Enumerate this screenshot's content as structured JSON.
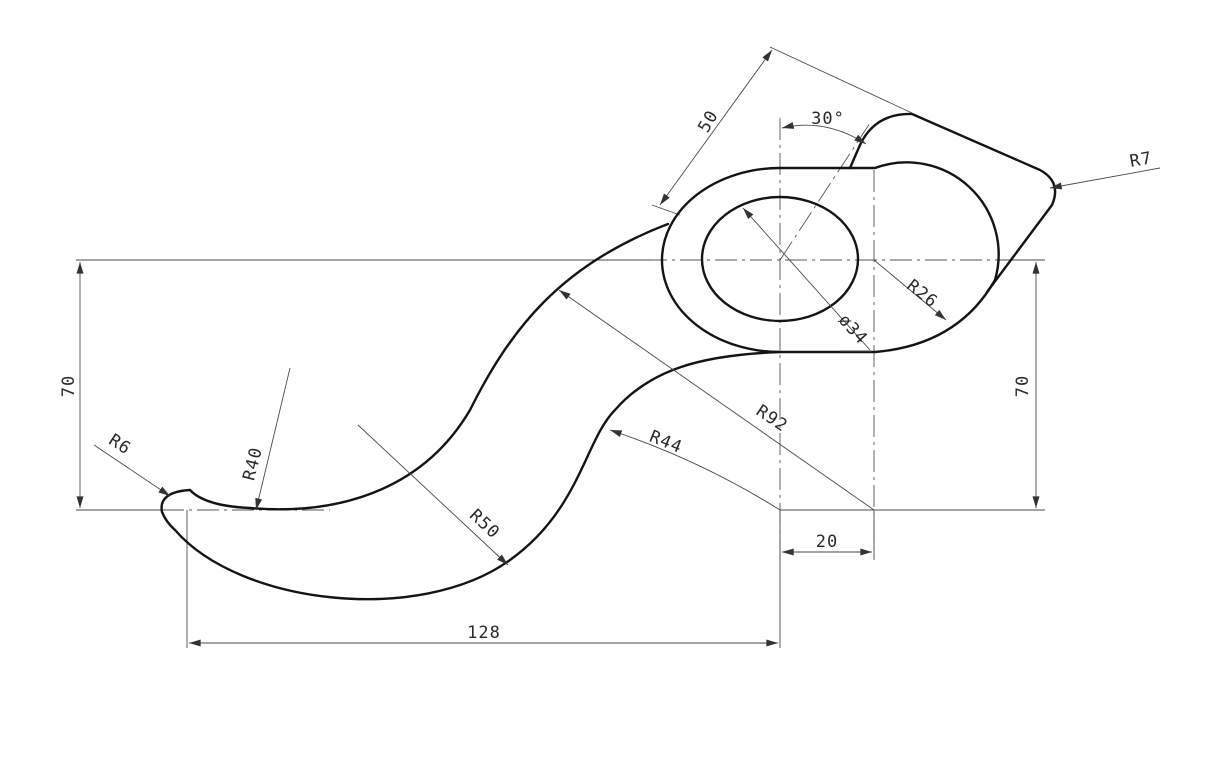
{
  "drawing": {
    "labels": {
      "dim_50": "50",
      "angle_30": "30°",
      "r7": "R7",
      "left_70": "70",
      "right_70": "70",
      "r26": "R26",
      "dia34": "ø34",
      "r92": "R92",
      "r44": "R44",
      "r6": "R6",
      "r40": "R40",
      "r50": "R50",
      "dim_20": "20",
      "dim_128": "128"
    }
  }
}
